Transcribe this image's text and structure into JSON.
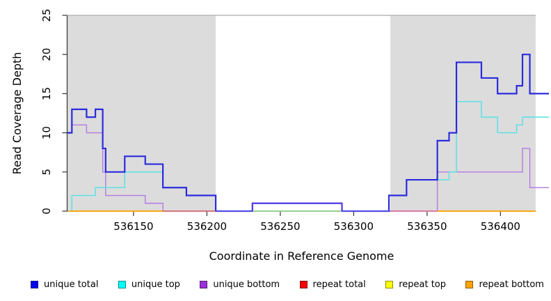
{
  "chart_data": {
    "type": "line",
    "subtype": "step-coverage-plot",
    "xlabel": "Coordinate in Reference Genome",
    "ylabel": "Read Coverage Depth",
    "xlim": [
      536105,
      536424
    ],
    "ylim": [
      0,
      25
    ],
    "x_ticks": [
      536150,
      536200,
      536250,
      536300,
      536350,
      536400
    ],
    "x_tick_labels": [
      "536150",
      "536200",
      "536250",
      "536300",
      "536350",
      "536400"
    ],
    "y_ticks": [
      0,
      5,
      10,
      15,
      20,
      25
    ],
    "y_tick_labels": [
      "0",
      "5",
      "10",
      "15",
      "20",
      "25"
    ],
    "grid": "off",
    "legend_position": "bottom",
    "frame_top_color": "#ABABAB",
    "axis_color": "#333333",
    "shaded_region_color": "#DCDCDC",
    "shaded_regions": [
      {
        "x1": 536105,
        "x2": 536206
      },
      {
        "x1": 536325,
        "x2": 536424
      }
    ],
    "series": [
      {
        "name": "repeat total",
        "color": "#DD2222",
        "width": 1.2,
        "xend": 536424,
        "steps": [
          [
            536105,
            0
          ]
        ]
      },
      {
        "name": "repeat top",
        "color": "#F5F500",
        "width": 1.2,
        "xend": 536424,
        "steps": [
          [
            536105,
            0
          ]
        ]
      },
      {
        "name": "repeat bottom",
        "color": "#FFA500",
        "width": 1.6,
        "xend": 536424,
        "steps": [
          [
            536105,
            0
          ]
        ]
      },
      {
        "name": "unique bottom",
        "color": "#B279E3",
        "width": 1.4,
        "xend": 536433,
        "steps": [
          [
            536105,
            10
          ],
          [
            536108,
            11
          ],
          [
            536118,
            10
          ],
          [
            536129,
            5
          ],
          [
            536131,
            2
          ],
          [
            536158,
            1
          ],
          [
            536170,
            0
          ],
          [
            536231,
            1
          ],
          [
            536292,
            0
          ],
          [
            536357,
            5
          ],
          [
            536415,
            8
          ],
          [
            536420,
            3
          ]
        ]
      },
      {
        "name": "unique top",
        "color": "#53E2E8",
        "width": 1.4,
        "xend": 536433,
        "steps": [
          [
            536105,
            0
          ],
          [
            536108,
            2
          ],
          [
            536124,
            3
          ],
          [
            536144,
            5
          ],
          [
            536170,
            3
          ],
          [
            536186,
            2
          ],
          [
            536206,
            0
          ],
          [
            536324,
            2
          ],
          [
            536336,
            4
          ],
          [
            536365,
            5
          ],
          [
            536370,
            14
          ],
          [
            536387,
            12
          ],
          [
            536398,
            10
          ],
          [
            536411,
            11
          ],
          [
            536415,
            12
          ]
        ]
      },
      {
        "name": "unique total",
        "color": "#2B2BDE",
        "width": 2.2,
        "xend": 536433,
        "steps": [
          [
            536105,
            10
          ],
          [
            536108,
            13
          ],
          [
            536118,
            12
          ],
          [
            536124,
            13
          ],
          [
            536129,
            8
          ],
          [
            536131,
            5
          ],
          [
            536144,
            7
          ],
          [
            536158,
            6
          ],
          [
            536170,
            3
          ],
          [
            536186,
            2
          ],
          [
            536206,
            0
          ],
          [
            536231,
            1
          ],
          [
            536292,
            0
          ],
          [
            536324,
            2
          ],
          [
            536336,
            4
          ],
          [
            536357,
            9
          ],
          [
            536365,
            10
          ],
          [
            536370,
            19
          ],
          [
            536387,
            17
          ],
          [
            536398,
            15
          ],
          [
            536411,
            16
          ],
          [
            536415,
            20
          ],
          [
            536420,
            15
          ]
        ]
      }
    ],
    "baseline_overlays": [
      {
        "x1": 536105,
        "x2": 536170,
        "y": 0,
        "color": "#FFA500",
        "width": 1.6,
        "drop": false
      },
      {
        "x1": 536170,
        "x2": 536206,
        "y": 0,
        "color": "#DB5F6B",
        "width": 1.2,
        "drop": false
      },
      {
        "x1": 536206,
        "x2": 536231,
        "y": 0,
        "color": "#6557E8",
        "width": 1.6,
        "drop": false
      },
      {
        "x1": 536231,
        "x2": 536292,
        "y": 0,
        "color": "#8FCF8F",
        "width": 1.2,
        "drop": false
      },
      {
        "x1": 536292,
        "x2": 536325,
        "y": 0,
        "color": "#6557E8",
        "width": 1.6,
        "drop": false
      },
      {
        "x1": 536325,
        "x2": 536357,
        "y": 0,
        "color": "#E36CA8",
        "width": 1.2,
        "drop": false
      },
      {
        "x1": 536357,
        "x2": 536424,
        "y": 0,
        "color": "#FFA500",
        "width": 1.6,
        "drop": false
      },
      {
        "x1": 536231,
        "x2": 536292,
        "y": 1,
        "color": "#5B3FE6",
        "width": 1.6,
        "drop": true
      }
    ]
  },
  "legend": {
    "items": [
      {
        "label": "unique total",
        "color": "#0000EE",
        "border": "#16168F"
      },
      {
        "label": "unique top",
        "color": "#00FFFF",
        "border": "#0A8A8A"
      },
      {
        "label": "unique bottom",
        "color": "#9B30D9",
        "border": "#551E78"
      },
      {
        "label": "repeat total",
        "color": "#FF0000",
        "border": "#7A0C0C"
      },
      {
        "label": "repeat top",
        "color": "#FFFF00",
        "border": "#8C8C00"
      },
      {
        "label": "repeat bottom",
        "color": "#FFA500",
        "border": "#8C5A00"
      }
    ]
  }
}
